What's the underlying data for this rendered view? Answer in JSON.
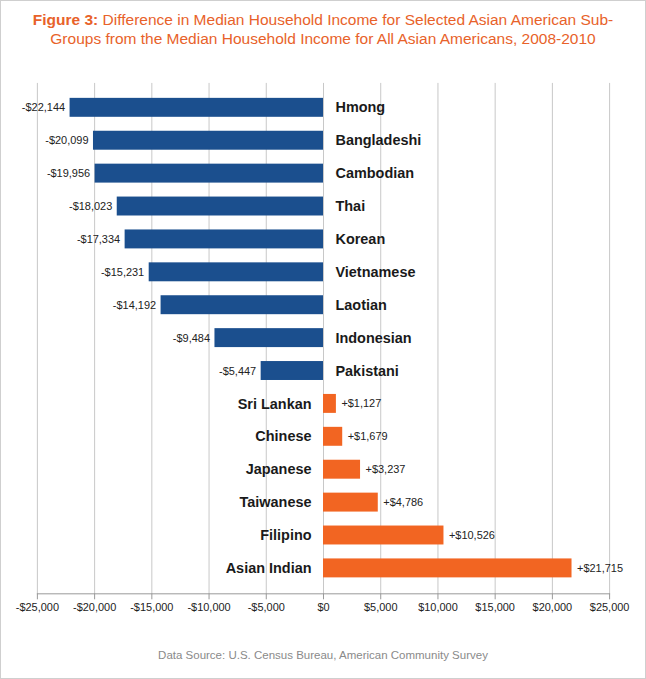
{
  "chart_data": {
    "type": "bar",
    "title": "Figure 3: Difference in Median Household Income for Selected Asian American Sub-Groups from the Median Household Income for All Asian Americans, 2008-2010",
    "caption": "Data Source: U.S. Census Bureau, American Community Survey",
    "orientation": "horizontal",
    "categories": [
      "Hmong",
      "Bangladeshi",
      "Cambodian",
      "Thai",
      "Korean",
      "Vietnamese",
      "Laotian",
      "Indonesian",
      "Pakistani",
      "Sri Lankan",
      "Chinese",
      "Japanese",
      "Taiwanese",
      "Filipino",
      "Asian Indian"
    ],
    "values": [
      -22144,
      -20099,
      -19956,
      -18023,
      -17334,
      -15231,
      -14192,
      -9484,
      -5447,
      1127,
      1679,
      3237,
      4786,
      10526,
      21715
    ],
    "value_labels": [
      "-$22,144",
      "-$20,099",
      "-$19,956",
      "-$18,023",
      "-$17,334",
      "-$15,231",
      "-$14,192",
      "-$9,484",
      "-$5,447",
      "+$1,127",
      "+$1,679",
      "+$3,237",
      "+$4,786",
      "+$10,526",
      "+$21,715"
    ],
    "colors": [
      "#1b4f8e",
      "#1b4f8e",
      "#1b4f8e",
      "#1b4f8e",
      "#1b4f8e",
      "#1b4f8e",
      "#1b4f8e",
      "#1b4f8e",
      "#1b4f8e",
      "#f26522",
      "#f26522",
      "#f26522",
      "#f26522",
      "#f26522",
      "#f26522"
    ],
    "data_labels": true,
    "grid": true,
    "xlim": [
      -25000,
      25000
    ],
    "xticks": [
      {
        "value": -25000,
        "label": "-$25,000"
      },
      {
        "value": -20000,
        "label": "-$20,000"
      },
      {
        "value": -15000,
        "label": "-$15,000"
      },
      {
        "value": -10000,
        "label": "-$10,000"
      },
      {
        "value": -5000,
        "label": "-$5,000"
      },
      {
        "value": 0,
        "label": "$0"
      },
      {
        "value": 5000,
        "label": "$5,000"
      },
      {
        "value": 10000,
        "label": "$10,000"
      },
      {
        "value": 15000,
        "label": "$15,000"
      },
      {
        "value": 20000,
        "label": "$20,000"
      },
      {
        "value": 25000,
        "label": "$25,000"
      }
    ]
  }
}
